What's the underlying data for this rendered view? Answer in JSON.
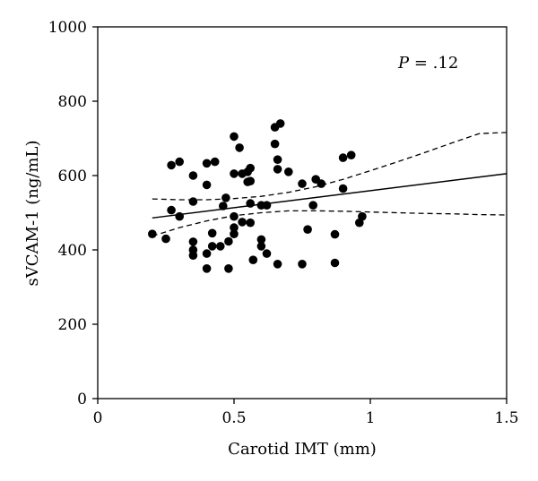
{
  "chart_data": {
    "type": "scatter",
    "xlabel": "Carotid IMT (mm)",
    "ylabel": "sVCAM-1 (ng/mL)",
    "xlim": [
      0,
      1.5
    ],
    "ylim": [
      0,
      1000
    ],
    "xticks": [
      0,
      0.5,
      1,
      1.5
    ],
    "xtick_labels": [
      "0",
      "0.5",
      "1",
      "1.5"
    ],
    "yticks": [
      0,
      200,
      400,
      600,
      800,
      1000
    ],
    "ytick_labels": [
      "0",
      "200",
      "400",
      "600",
      "800",
      "1000"
    ],
    "grid": false,
    "legend": "none",
    "annotation": {
      "symbol": "P",
      "text": " = .12"
    },
    "points": [
      [
        0.2,
        443
      ],
      [
        0.25,
        430
      ],
      [
        0.27,
        628
      ],
      [
        0.27,
        507
      ],
      [
        0.3,
        637
      ],
      [
        0.3,
        490
      ],
      [
        0.35,
        600
      ],
      [
        0.35,
        530
      ],
      [
        0.35,
        422
      ],
      [
        0.35,
        400
      ],
      [
        0.35,
        385
      ],
      [
        0.4,
        633
      ],
      [
        0.4,
        575
      ],
      [
        0.4,
        390
      ],
      [
        0.4,
        350
      ],
      [
        0.42,
        410
      ],
      [
        0.42,
        445
      ],
      [
        0.43,
        637
      ],
      [
        0.45,
        410
      ],
      [
        0.46,
        518
      ],
      [
        0.47,
        540
      ],
      [
        0.48,
        423
      ],
      [
        0.48,
        350
      ],
      [
        0.5,
        705
      ],
      [
        0.5,
        605
      ],
      [
        0.5,
        490
      ],
      [
        0.5,
        460
      ],
      [
        0.5,
        443
      ],
      [
        0.52,
        675
      ],
      [
        0.53,
        605
      ],
      [
        0.53,
        475
      ],
      [
        0.55,
        610
      ],
      [
        0.55,
        583
      ],
      [
        0.56,
        620
      ],
      [
        0.56,
        585
      ],
      [
        0.56,
        525
      ],
      [
        0.56,
        473
      ],
      [
        0.57,
        373
      ],
      [
        0.6,
        520
      ],
      [
        0.6,
        428
      ],
      [
        0.6,
        410
      ],
      [
        0.62,
        520
      ],
      [
        0.62,
        390
      ],
      [
        0.65,
        730
      ],
      [
        0.65,
        685
      ],
      [
        0.66,
        643
      ],
      [
        0.66,
        617
      ],
      [
        0.66,
        362
      ],
      [
        0.67,
        740
      ],
      [
        0.7,
        610
      ],
      [
        0.75,
        578
      ],
      [
        0.75,
        362
      ],
      [
        0.77,
        455
      ],
      [
        0.79,
        520
      ],
      [
        0.8,
        590
      ],
      [
        0.82,
        578
      ],
      [
        0.87,
        442
      ],
      [
        0.87,
        365
      ],
      [
        0.9,
        648
      ],
      [
        0.9,
        565
      ],
      [
        0.93,
        655
      ],
      [
        0.96,
        473
      ],
      [
        0.97,
        490
      ]
    ],
    "fit_line": {
      "x": [
        0.2,
        1.5
      ],
      "y": [
        486,
        605
      ]
    },
    "ci_upper": {
      "x": [
        0.2,
        0.3,
        0.4,
        0.5,
        0.6,
        0.7,
        0.8,
        0.9,
        1.0,
        1.1,
        1.2,
        1.3,
        1.4,
        1.5
      ],
      "y": [
        537,
        535,
        535,
        538,
        544,
        555,
        570,
        590,
        613,
        637,
        662,
        688,
        713,
        716
      ]
    },
    "ci_lower": {
      "x": [
        0.2,
        0.3,
        0.4,
        0.5,
        0.6,
        0.7,
        0.8,
        0.9,
        1.0,
        1.1,
        1.2,
        1.3,
        1.4,
        1.5
      ],
      "y": [
        437,
        460,
        478,
        492,
        500,
        505,
        505,
        504,
        502,
        500,
        498,
        497,
        495,
        494
      ]
    }
  }
}
